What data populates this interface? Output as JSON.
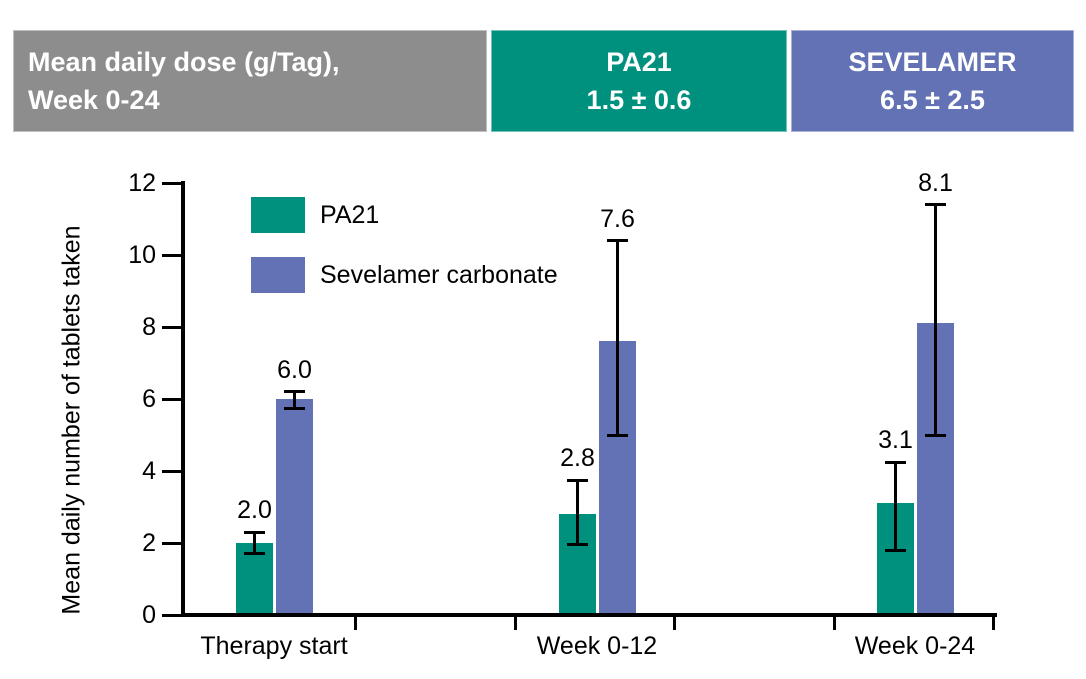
{
  "header": {
    "title": {
      "line1": "Mean daily dose (g/Tag),",
      "line2": "Week 0-24"
    },
    "pa21": {
      "line1": "PA21",
      "line2": "1.5 ± 0.6"
    },
    "sevelamer": {
      "line1": "SEVELAMER",
      "line2": "6.5 ± 2.5"
    }
  },
  "colors": {
    "teal": "#00917E",
    "blue": "#6272B4",
    "gray": "#8D8D8D",
    "axis": "#000000"
  },
  "chart_data": {
    "type": "bar",
    "title": "",
    "xlabel": "",
    "ylabel": "Mean daily number of tablets taken",
    "ylim": [
      0,
      12
    ],
    "yticks": [
      0,
      2,
      4,
      6,
      8,
      10,
      12
    ],
    "grid": false,
    "legend_position": "top-left-inside",
    "categories": [
      "Therapy start",
      "Week 0-12",
      "Week 0-24"
    ],
    "series": [
      {
        "name": "PA21",
        "color_key": "teal",
        "values": [
          2.0,
          2.8,
          3.1
        ],
        "value_labels": [
          "2.0",
          "2.8",
          "3.1"
        ],
        "whisker_low": [
          1.7,
          1.95,
          1.8
        ],
        "whisker_high": [
          2.3,
          3.75,
          4.25
        ]
      },
      {
        "name": "Sevelamer carbonate",
        "color_key": "blue",
        "values": [
          6.0,
          7.6,
          8.1
        ],
        "value_labels": [
          "6.0",
          "7.6",
          "8.1"
        ],
        "whisker_low": [
          5.75,
          5.0,
          5.0
        ],
        "whisker_high": [
          6.2,
          10.4,
          11.4
        ]
      }
    ]
  }
}
